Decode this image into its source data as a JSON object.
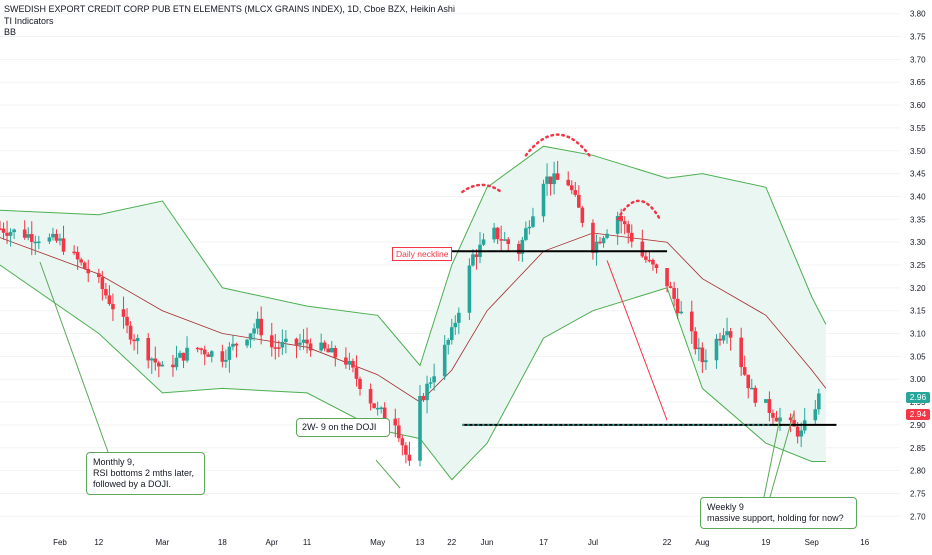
{
  "header": {
    "title": "SWEDISH EXPORT CREDIT CORP PUB ETN ELEMENTS (MLCX GRAINS INDEX), 1D, Cboe BZX, Heikin Ashi",
    "indicator1": "TI Indicators",
    "indicator2": "BB"
  },
  "colors": {
    "up": "#26a69a",
    "down": "#f23645",
    "band": "#4caf50",
    "band_fill": "#e8f5f1",
    "basis": "#a52a2a",
    "accent": "#5aa857"
  },
  "price_tags": {
    "last": "2.96",
    "last_color": "#26a69a",
    "prev": "2.94",
    "prev_color": "#f23645"
  },
  "annotations": {
    "monthly": "Monthly 9,\nRSI bottoms 2 mths later,\nfollowed by a DOJI.",
    "doji": "2W- 9 on the DOJI",
    "weekly": "Weekly 9\nmassive support, holding for now?",
    "neckline": "Daily neckline"
  },
  "chart_data": {
    "type": "candlestick",
    "style": "Heikin Ashi",
    "interval": "1D",
    "exchange": "Cboe BZX",
    "y_axis": {
      "min": 2.67,
      "max": 3.83,
      "ticks": [
        "3.80",
        "3.75",
        "3.70",
        "3.65",
        "3.60",
        "3.55",
        "3.50",
        "3.45",
        "3.40",
        "3.35",
        "3.30",
        "3.25",
        "3.20",
        "3.15",
        "3.10",
        "3.05",
        "3.00",
        "2.95",
        "2.90",
        "2.85",
        "2.80",
        "2.75",
        "2.70"
      ]
    },
    "x_axis": {
      "labels": [
        "Feb",
        "12",
        "Mar",
        "18",
        "Apr",
        "11",
        "May",
        "13",
        "22",
        "Jun",
        "17",
        "Jul",
        "22",
        "Aug",
        "19",
        "Sep",
        "16"
      ],
      "label_positions": [
        "2024-02-01",
        "2024-02-12",
        "2024-03-01",
        "2024-03-18",
        "2024-04-01",
        "2024-04-11",
        "2024-05-01",
        "2024-05-13",
        "2024-05-22",
        "2024-06-01",
        "2024-06-17",
        "2024-07-01",
        "2024-07-22",
        "2024-08-01",
        "2024-08-19",
        "2024-09-01",
        "2024-09-16"
      ]
    },
    "ohlc_close_approx": [
      {
        "date": "2024-01-15",
        "value": 3.33
      },
      {
        "date": "2024-02-01",
        "value": 3.3
      },
      {
        "date": "2024-02-12",
        "value": 3.21
      },
      {
        "date": "2024-02-20",
        "value": 3.11
      },
      {
        "date": "2024-03-01",
        "value": 3.02
      },
      {
        "date": "2024-03-10",
        "value": 3.07
      },
      {
        "date": "2024-03-18",
        "value": 3.05
      },
      {
        "date": "2024-03-28",
        "value": 3.12
      },
      {
        "date": "2024-04-01",
        "value": 3.07
      },
      {
        "date": "2024-04-11",
        "value": 3.08
      },
      {
        "date": "2024-04-22",
        "value": 3.04
      },
      {
        "date": "2024-05-01",
        "value": 2.93
      },
      {
        "date": "2024-05-06",
        "value": 2.91
      },
      {
        "date": "2024-05-10",
        "value": 2.81
      },
      {
        "date": "2024-05-13",
        "value": 2.95
      },
      {
        "date": "2024-05-22",
        "value": 3.1
      },
      {
        "date": "2024-05-28",
        "value": 3.27
      },
      {
        "date": "2024-06-03",
        "value": 3.32
      },
      {
        "date": "2024-06-10",
        "value": 3.28
      },
      {
        "date": "2024-06-17",
        "value": 3.44
      },
      {
        "date": "2024-06-24",
        "value": 3.43
      },
      {
        "date": "2024-07-01",
        "value": 3.29
      },
      {
        "date": "2024-07-08",
        "value": 3.36
      },
      {
        "date": "2024-07-15",
        "value": 3.27
      },
      {
        "date": "2024-07-22",
        "value": 3.21
      },
      {
        "date": "2024-08-01",
        "value": 3.04
      },
      {
        "date": "2024-08-08",
        "value": 3.12
      },
      {
        "date": "2024-08-15",
        "value": 2.97
      },
      {
        "date": "2024-08-22",
        "value": 2.92
      },
      {
        "date": "2024-08-29",
        "value": 2.88
      },
      {
        "date": "2024-09-03",
        "value": 2.96
      }
    ],
    "bollinger_upper": [
      {
        "date": "2024-01-15",
        "value": 3.37
      },
      {
        "date": "2024-02-12",
        "value": 3.36
      },
      {
        "date": "2024-03-01",
        "value": 3.39
      },
      {
        "date": "2024-03-18",
        "value": 3.2
      },
      {
        "date": "2024-04-11",
        "value": 3.16
      },
      {
        "date": "2024-05-01",
        "value": 3.14
      },
      {
        "date": "2024-05-13",
        "value": 3.03
      },
      {
        "date": "2024-05-22",
        "value": 3.25
      },
      {
        "date": "2024-06-01",
        "value": 3.42
      },
      {
        "date": "2024-06-17",
        "value": 3.51
      },
      {
        "date": "2024-07-01",
        "value": 3.49
      },
      {
        "date": "2024-07-22",
        "value": 3.44
      },
      {
        "date": "2024-08-01",
        "value": 3.45
      },
      {
        "date": "2024-08-19",
        "value": 3.42
      },
      {
        "date": "2024-09-01",
        "value": 3.18
      },
      {
        "date": "2024-09-05",
        "value": 3.12
      }
    ],
    "bollinger_basis": [
      {
        "date": "2024-01-15",
        "value": 3.31
      },
      {
        "date": "2024-02-12",
        "value": 3.23
      },
      {
        "date": "2024-03-01",
        "value": 3.15
      },
      {
        "date": "2024-03-18",
        "value": 3.1
      },
      {
        "date": "2024-04-11",
        "value": 3.07
      },
      {
        "date": "2024-05-01",
        "value": 3.01
      },
      {
        "date": "2024-05-13",
        "value": 2.95
      },
      {
        "date": "2024-05-22",
        "value": 3.02
      },
      {
        "date": "2024-06-01",
        "value": 3.15
      },
      {
        "date": "2024-06-17",
        "value": 3.28
      },
      {
        "date": "2024-07-01",
        "value": 3.32
      },
      {
        "date": "2024-07-22",
        "value": 3.3
      },
      {
        "date": "2024-08-01",
        "value": 3.22
      },
      {
        "date": "2024-08-19",
        "value": 3.14
      },
      {
        "date": "2024-09-01",
        "value": 3.02
      },
      {
        "date": "2024-09-05",
        "value": 2.98
      }
    ],
    "bollinger_lower": [
      {
        "date": "2024-01-15",
        "value": 3.25
      },
      {
        "date": "2024-02-12",
        "value": 3.1
      },
      {
        "date": "2024-03-01",
        "value": 2.97
      },
      {
        "date": "2024-03-18",
        "value": 2.98
      },
      {
        "date": "2024-04-11",
        "value": 2.97
      },
      {
        "date": "2024-05-01",
        "value": 2.89
      },
      {
        "date": "2024-05-13",
        "value": 2.87
      },
      {
        "date": "2024-05-22",
        "value": 2.78
      },
      {
        "date": "2024-06-01",
        "value": 2.86
      },
      {
        "date": "2024-06-17",
        "value": 3.09
      },
      {
        "date": "2024-07-01",
        "value": 3.15
      },
      {
        "date": "2024-07-22",
        "value": 3.2
      },
      {
        "date": "2024-08-01",
        "value": 2.98
      },
      {
        "date": "2024-08-19",
        "value": 2.86
      },
      {
        "date": "2024-09-01",
        "value": 2.82
      },
      {
        "date": "2024-09-05",
        "value": 2.82
      }
    ],
    "horizontal_levels": [
      {
        "name": "neckline",
        "value": 3.28,
        "from": "2024-05-22",
        "to": "2024-07-22",
        "color": "#000000",
        "style": "solid"
      },
      {
        "name": "support",
        "value": 2.9,
        "from": "2024-05-25",
        "to": "2024-09-08",
        "color": "#000000",
        "style": "solid"
      },
      {
        "name": "support-dash",
        "value": 2.9,
        "from": "2024-05-25",
        "to": "2024-08-20",
        "color": "#26a69a",
        "style": "dotted"
      }
    ]
  }
}
